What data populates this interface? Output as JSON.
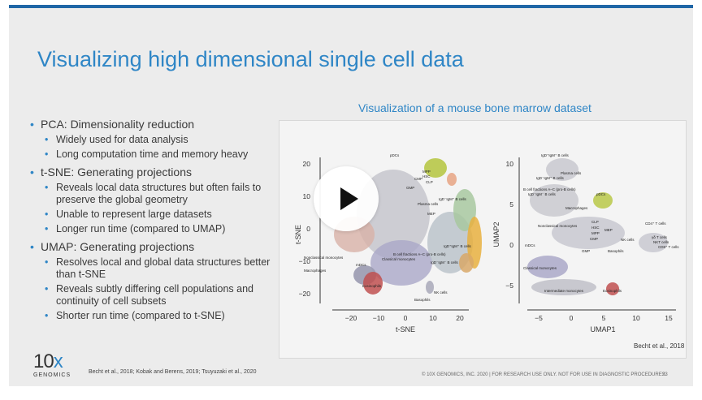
{
  "slide": {
    "title": "Visualizing high dimensional single cell data",
    "accent_color": "#2f86c6",
    "bullets": [
      {
        "text": "PCA: Dimensionality reduction",
        "children": [
          "Widely used for data analysis",
          "Long computation time and memory heavy"
        ]
      },
      {
        "text": "t-SNE: Generating projections",
        "children": [
          "Reveals local data structures but often fails to preserve the global geometry",
          "Unable to represent large datasets",
          "Longer run time (compared to UMAP)"
        ]
      },
      {
        "text": "UMAP: Generating projections",
        "children": [
          "Resolves local and global data structures better than t-SNE",
          "Reveals subtly differing cell populations and continuity of cell subsets",
          "Shorter run time (compared to t-SNE)"
        ]
      }
    ],
    "figure": {
      "title": "Visualization of a mouse bone marrow dataset",
      "credit": "Becht et al., 2018",
      "tsne": {
        "ylabel": "t-SNE",
        "xlabel": "t-SNE",
        "xticks": [
          "−20",
          "−10",
          "0",
          "10",
          "20"
        ],
        "yticks": [
          "20",
          "10",
          "0",
          "−10",
          "−20"
        ],
        "labels": [
          "pDCs",
          "MPP",
          "HSC",
          "CMP",
          "CLP",
          "GMP",
          "Plasma cells",
          "IgD⁻IgM⁺ B cells",
          "MEP",
          "Nonclassical monocytes",
          "mDCs",
          "Macrophages",
          "Eosinophils",
          "Classical monocytes",
          "B cell fractions A–C (pro-B cells)",
          "IgD⁺IgM⁺ B cells",
          "IgD⁻IgM⁻ B cells",
          "NK cells",
          "Basophils"
        ]
      },
      "umap": {
        "ylabel": "UMAP2",
        "xlabel": "UMAP1",
        "xticks": [
          "−5",
          "0",
          "5",
          "10",
          "15"
        ],
        "yticks": [
          "10",
          "5",
          "0",
          "−5"
        ],
        "labels": [
          "IgD⁺IgM⁺ B cells",
          "Plasma cells",
          "IgD⁻IgM⁺ B cells",
          "B cell fractions A–C (pro-B cells)",
          "IgD⁻IgM⁻ B cells",
          "pDCs",
          "Macrophages",
          "Nonclassical monocytes",
          "CLP",
          "HSC",
          "MPP",
          "MEP",
          "CMP",
          "GMP",
          "mDCs",
          "NK cells",
          "Basophils",
          "CD4⁺ T cells",
          "γδ T cells",
          "NKT cells",
          "CD8⁺ T cells",
          "Classical monocytes",
          "Intermediate monocytes",
          "Eosinophils"
        ]
      }
    },
    "logo": {
      "main": "10",
      "accent": "x",
      "sub": "GENOMICS"
    },
    "references": "Becht et al., 2018; Kobak and Berens, 2019; Tsuyuzaki et al., 2020",
    "footer": "© 10X GENOMICS, INC. 2020   |   FOR RESEARCH USE ONLY. NOT FOR USE IN DIAGNOSTIC PROCEDURES.",
    "page_number": "23"
  },
  "video": {
    "play_icon": "play-icon"
  }
}
